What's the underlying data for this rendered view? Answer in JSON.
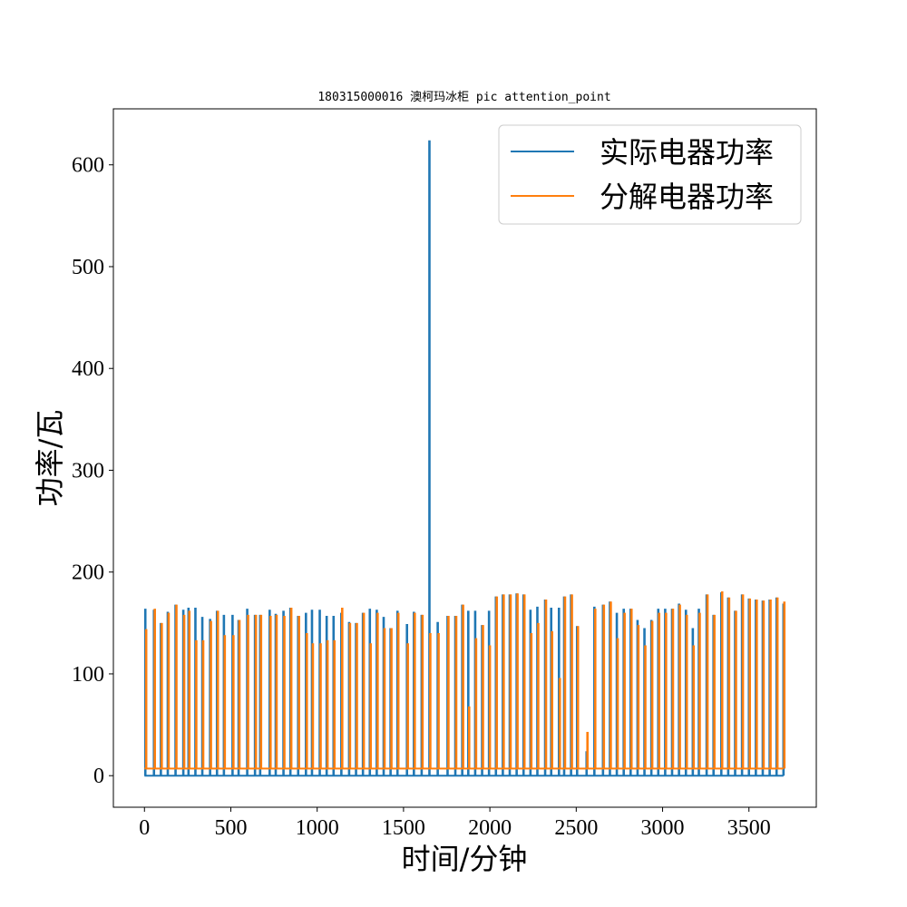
{
  "chart_data": {
    "type": "line",
    "title": "180315000016 澳柯玛冰柜 pic attention_point",
    "xlabel": "时间/分钟",
    "ylabel": "功率/瓦",
    "xlim": [
      -180,
      3890
    ],
    "ylim": [
      -31,
      655
    ],
    "xticks": [
      0,
      500,
      1000,
      1500,
      2000,
      2500,
      3000,
      3500
    ],
    "yticks": [
      0,
      100,
      200,
      300,
      400,
      500,
      600
    ],
    "grid": false,
    "legend_position": "top-right",
    "x_range": [
      0,
      3700
    ],
    "series": [
      {
        "name": "实际电器功率",
        "color": "#1f77b4",
        "baseline": 0,
        "spike_x": [
          5,
          55,
          95,
          135,
          180,
          225,
          255,
          295,
          335,
          380,
          420,
          460,
          510,
          545,
          595,
          640,
          670,
          725,
          760,
          805,
          845,
          890,
          935,
          970,
          1015,
          1055,
          1095,
          1140,
          1185,
          1225,
          1265,
          1305,
          1345,
          1385,
          1425,
          1465,
          1520,
          1560,
          1605,
          1650,
          1698,
          1755,
          1800,
          1840,
          1875,
          1915,
          1955,
          1995,
          2035,
          2075,
          2115,
          2155,
          2195,
          2235,
          2275,
          2320,
          2355,
          2400,
          2430,
          2470,
          2505,
          2560,
          2605,
          2655,
          2695,
          2735,
          2775,
          2815,
          2855,
          2895,
          2935,
          2975,
          3015,
          3055,
          3095,
          3135,
          3175,
          3210,
          3255,
          3295,
          3340,
          3380,
          3420,
          3460,
          3500,
          3540,
          3580,
          3620,
          3660,
          3700
        ],
        "spike_y": [
          164,
          163,
          150,
          161,
          168,
          163,
          165,
          165,
          156,
          154,
          162,
          158,
          158,
          153,
          164,
          158,
          158,
          163,
          159,
          162,
          165,
          157,
          160,
          163,
          163,
          157,
          157,
          160,
          151,
          150,
          160,
          164,
          163,
          156,
          145,
          162,
          149,
          161,
          158,
          624,
          151,
          157,
          157,
          168,
          162,
          162,
          148,
          162,
          176,
          178,
          178,
          179,
          178,
          163,
          166,
          173,
          165,
          165,
          176,
          178,
          147,
          24,
          166,
          168,
          171,
          160,
          164,
          164,
          153,
          145,
          153,
          164,
          164,
          164,
          169,
          163,
          145,
          164,
          178,
          158,
          180,
          175,
          162,
          178,
          174,
          173,
          172,
          173,
          175,
          169
        ]
      },
      {
        "name": "分解电器功率",
        "color": "#ff7f0e",
        "baseline": 7,
        "spike_x": [
          10,
          60,
          100,
          140,
          185,
          230,
          260,
          300,
          340,
          385,
          425,
          465,
          515,
          550,
          600,
          645,
          675,
          730,
          765,
          810,
          850,
          895,
          940,
          975,
          1020,
          1060,
          1100,
          1145,
          1190,
          1230,
          1270,
          1310,
          1350,
          1390,
          1430,
          1470,
          1525,
          1565,
          1610,
          1655,
          1703,
          1760,
          1805,
          1845,
          1880,
          1920,
          1960,
          2000,
          2040,
          2080,
          2120,
          2160,
          2200,
          2240,
          2280,
          2325,
          2360,
          2405,
          2435,
          2475,
          2510,
          2565,
          2610,
          2660,
          2700,
          2740,
          2780,
          2820,
          2860,
          2900,
          2940,
          2980,
          3020,
          3060,
          3100,
          3140,
          3180,
          3215,
          3260,
          3300,
          3345,
          3385,
          3425,
          3465,
          3505,
          3545,
          3585,
          3625,
          3665,
          3705
        ],
        "spike_y": [
          144,
          164,
          150,
          160,
          168,
          158,
          162,
          133,
          133,
          152,
          162,
          138,
          138,
          153,
          158,
          158,
          158,
          157,
          158,
          157,
          165,
          157,
          140,
          130,
          130,
          133,
          133,
          165,
          150,
          150,
          160,
          130,
          160,
          145,
          145,
          160,
          130,
          160,
          158,
          140,
          140,
          157,
          157,
          168,
          68,
          135,
          148,
          128,
          176,
          178,
          178,
          179,
          178,
          140,
          150,
          173,
          142,
          96,
          176,
          178,
          147,
          43,
          164,
          168,
          171,
          135,
          160,
          164,
          148,
          128,
          152,
          160,
          160,
          164,
          168,
          158,
          128,
          160,
          178,
          158,
          181,
          175,
          162,
          178,
          174,
          173,
          172,
          173,
          175,
          171
        ]
      }
    ]
  }
}
